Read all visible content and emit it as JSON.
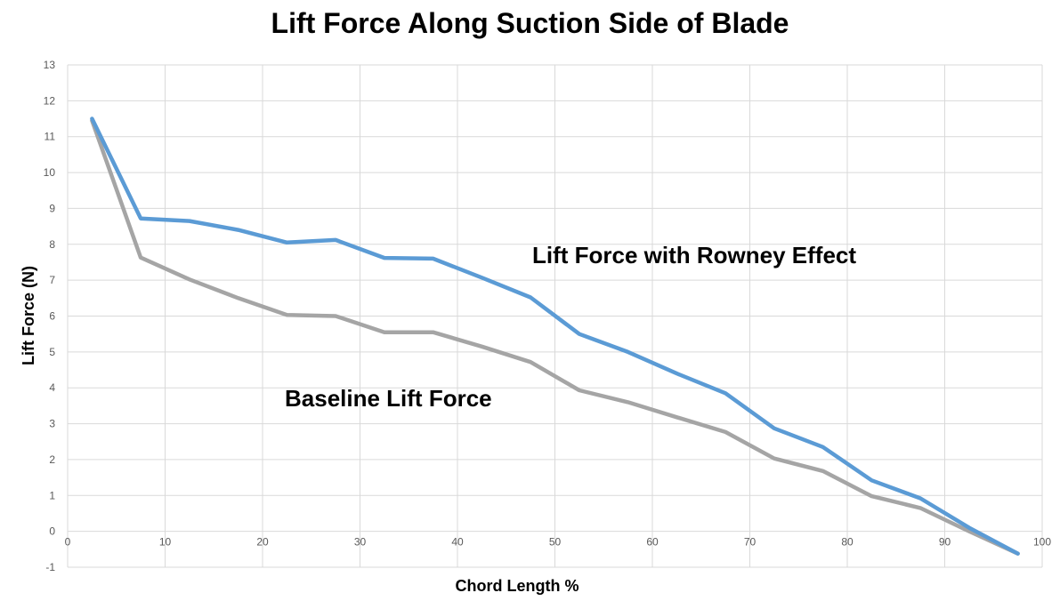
{
  "chart_data": {
    "type": "line",
    "title": "Lift Force Along Suction Side of Blade",
    "xlabel": "Chord Length %",
    "ylabel": "Lift Force (N)",
    "xlim": [
      0,
      100
    ],
    "ylim": [
      -1,
      13
    ],
    "x_ticks": [
      "0",
      "10",
      "20",
      "30",
      "40",
      "50",
      "60",
      "70",
      "80",
      "90",
      "100"
    ],
    "y_ticks": [
      "-1",
      "0",
      "1",
      "2",
      "3",
      "4",
      "5",
      "6",
      "7",
      "8",
      "9",
      "10",
      "11",
      "12",
      "13"
    ],
    "grid": true,
    "x": [
      2.5,
      7.5,
      12.5,
      17.5,
      22.5,
      27.5,
      32.5,
      37.5,
      42.5,
      47.5,
      52.5,
      57.5,
      62.5,
      67.5,
      72.5,
      77.5,
      82.5,
      87.5,
      92.5,
      97.5
    ],
    "series": [
      {
        "name": "Lift Force with Rowney Effect",
        "color": "#5b9bd5",
        "values": [
          11.5,
          8.72,
          8.65,
          8.4,
          8.05,
          8.12,
          7.62,
          7.6,
          7.07,
          6.52,
          5.5,
          5.0,
          4.4,
          3.85,
          2.87,
          2.35,
          1.42,
          0.92,
          0.1,
          -0.62
        ]
      },
      {
        "name": "Baseline Lift Force",
        "color": "#a5a5a5",
        "values": [
          11.45,
          7.63,
          7.02,
          6.5,
          6.03,
          6.0,
          5.55,
          5.55,
          5.15,
          4.72,
          3.93,
          3.6,
          3.18,
          2.77,
          2.03,
          1.68,
          0.98,
          0.65,
          0.0,
          -0.62
        ]
      }
    ],
    "annotations": [
      "Lift Force with Rowney Effect",
      "Baseline Lift Force"
    ]
  }
}
